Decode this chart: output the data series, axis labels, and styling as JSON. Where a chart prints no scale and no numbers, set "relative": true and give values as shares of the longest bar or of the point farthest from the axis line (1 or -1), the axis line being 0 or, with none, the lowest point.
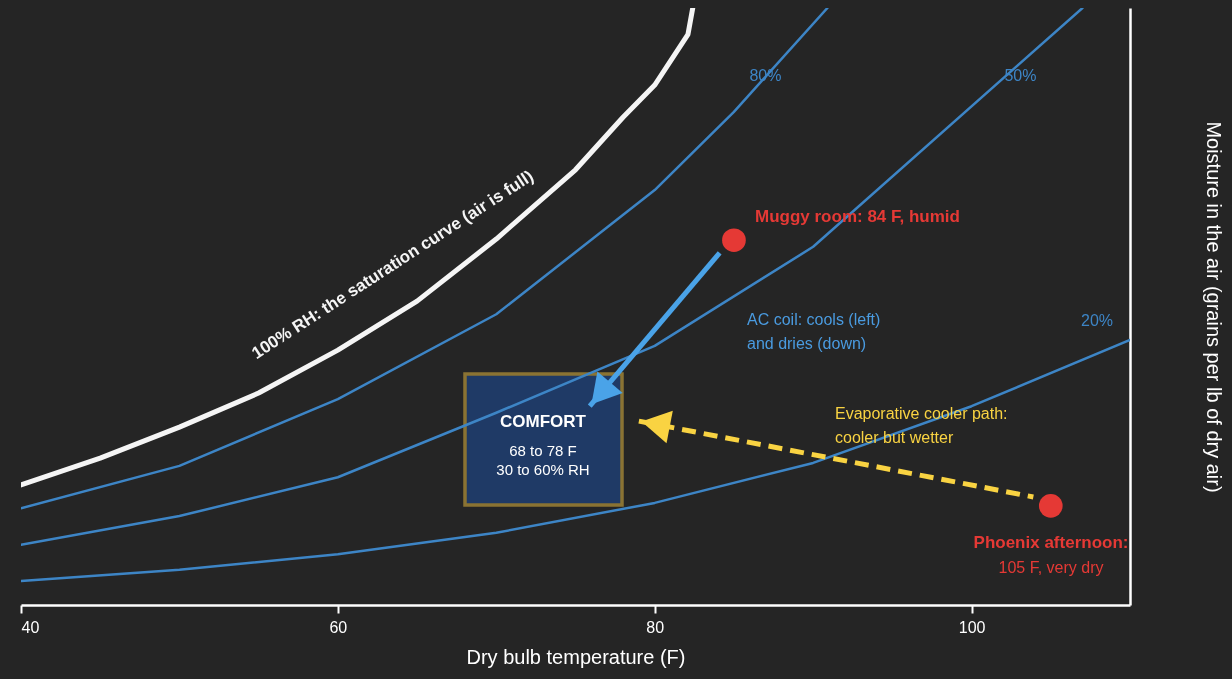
{
  "chart_data": {
    "type": "line",
    "relative": true,
    "xlabel": "Dry bulb temperature (F)",
    "ylabel": "Moisture in the air (grains per lb of dry air)",
    "xlim": [
      40,
      110
    ],
    "xticks": [
      40,
      60,
      80,
      100
    ],
    "grid": false,
    "tick_labels": "x",
    "marker": "none",
    "series": [
      {
        "name": "100% RH: the saturation curve (air is full)",
        "color": "#f5f5f5",
        "x": [
          40,
          45,
          50,
          55,
          60,
          65,
          70,
          75,
          78,
          80,
          82.1,
          82.4
        ],
        "values": [
          0.201,
          0.246,
          0.298,
          0.355,
          0.427,
          0.509,
          0.613,
          0.729,
          0.817,
          0.871,
          0.956,
          1.0
        ]
      },
      {
        "name": "80%",
        "color": "#3d85c6",
        "x": [
          40,
          50,
          60,
          70,
          80,
          85,
          90.9
        ],
        "values": [
          0.162,
          0.233,
          0.345,
          0.487,
          0.695,
          0.826,
          1.0
        ]
      },
      {
        "name": "50%",
        "color": "#3d85c6",
        "x": [
          40,
          50,
          60,
          70,
          80,
          90,
          107
        ],
        "values": [
          0.101,
          0.149,
          0.214,
          0.322,
          0.434,
          0.6,
          1.0
        ]
      },
      {
        "name": "20%",
        "color": "#3d85c6",
        "x": [
          40,
          50,
          60,
          70,
          80,
          90,
          100,
          110
        ],
        "values": [
          0.04,
          0.059,
          0.085,
          0.121,
          0.171,
          0.238,
          0.333,
          0.444
        ]
      },
      {
        "color": "#4aa3e8",
        "x": [
          84.1,
          75.9
        ],
        "values": [
          0.59,
          0.333
        ]
      },
      {
        "color": "#f9d342",
        "line_style": "dashed",
        "x": [
          103.9,
          79.0
        ],
        "values": [
          0.181,
          0.308
        ]
      },
      {
        "type": "scatter",
        "marker": "circle",
        "color": "#e53935",
        "x": [
          85,
          105
        ],
        "values": [
          0.611,
          0.166
        ]
      }
    ],
    "annotations": [
      "Muggy room: 84 F, humid",
      "AC coil: cools (left)\nand dries (down)",
      "COMFORT",
      "68 to 78 F",
      "30 to 60% RH",
      "Evaporative cooler path:\ncooler but wetter",
      "Phoenix afternoon:",
      "105 F, very dry"
    ]
  }
}
